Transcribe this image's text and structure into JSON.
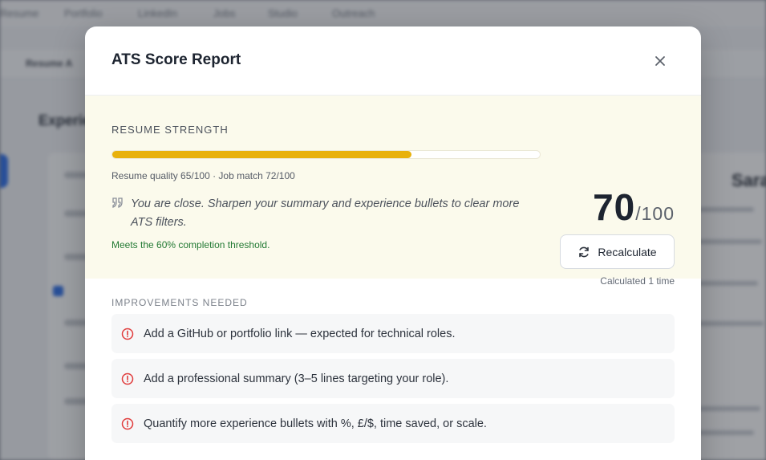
{
  "background": {
    "nav": [
      "Resume",
      "Portfolio",
      "LinkedIn",
      "Jobs",
      "Studio",
      "Outreach"
    ],
    "subnav_label": "Resume A",
    "section_title": "Experience",
    "right_name": "Sara"
  },
  "modal": {
    "title": "ATS Score Report",
    "close_icon": "close-icon"
  },
  "strength": {
    "label": "RESUME STRENGTH",
    "progress_fraction": 0.7,
    "quality_line": "Resume quality 65/100 · Job match 72/100",
    "quote_icon": "quote-icon",
    "quote": "You are close. Sharpen your summary and experience bullets to clear more ATS filters.",
    "threshold_note": "Meets the 60% completion threshold.",
    "score": "70",
    "score_total": "/100",
    "recalculate_label": "Recalculate",
    "recalculate_icon": "refresh-icon",
    "calculated_note": "Calculated 1 time"
  },
  "improvements": {
    "label": "IMPROVEMENTS NEEDED",
    "items": [
      {
        "icon": "alert-circle-icon",
        "text": "Add a GitHub or portfolio link — expected for technical roles."
      },
      {
        "icon": "alert-circle-icon",
        "text": "Add a professional summary (3–5 lines targeting your role)."
      },
      {
        "icon": "alert-circle-icon",
        "text": "Quantify more experience bullets with %, £/$, time saved, or scale."
      }
    ]
  },
  "colors": {
    "accent_fill": "#e8b10c",
    "success_text": "#237a34",
    "alert_icon": "#e03b3b",
    "strength_bg": "#fbfaec"
  }
}
